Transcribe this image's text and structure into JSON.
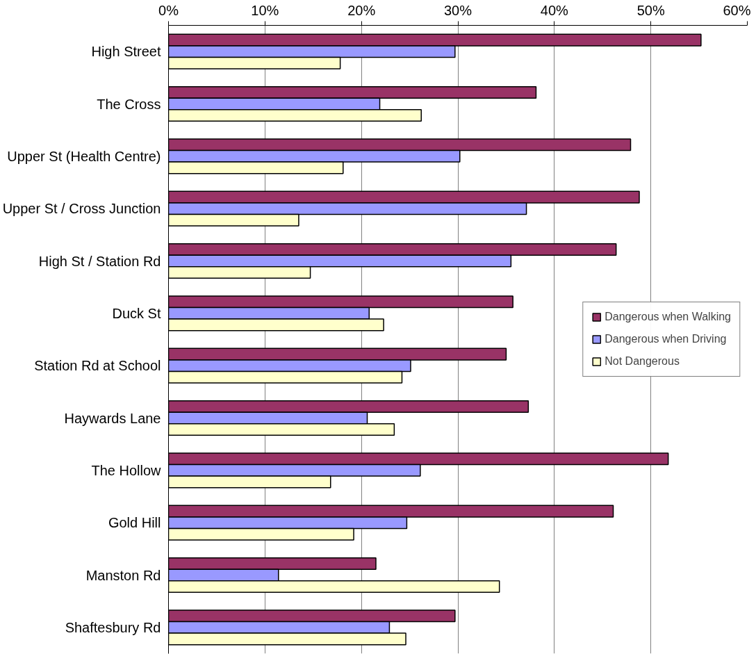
{
  "chart_data": {
    "type": "bar",
    "orientation": "horizontal",
    "categories": [
      "High Street",
      "The Cross",
      "Upper St (Health Centre)",
      "Upper St / Cross Junction",
      "High St / Station Rd",
      "Duck St",
      "Station Rd at School",
      "Haywards Lane",
      "The Hollow",
      "Gold Hill",
      "Manston Rd",
      "Shaftesbury Rd"
    ],
    "series": [
      {
        "name": "Dangerous when Walking",
        "color": "#993366",
        "values": [
          55.2,
          38.1,
          47.9,
          48.8,
          46.4,
          35.7,
          35.0,
          37.3,
          51.8,
          46.1,
          21.5,
          29.7
        ]
      },
      {
        "name": "Dangerous when Driving",
        "color": "#9999ff",
        "values": [
          29.7,
          21.9,
          30.2,
          37.1,
          35.5,
          20.8,
          25.1,
          20.6,
          26.1,
          24.7,
          11.4,
          22.9
        ]
      },
      {
        "name": "Not Dangerous",
        "color": "#ffffcc",
        "values": [
          17.8,
          26.2,
          18.1,
          13.5,
          14.7,
          22.3,
          24.2,
          23.4,
          16.8,
          19.2,
          34.3,
          24.6
        ]
      }
    ],
    "xlim": [
      0,
      60
    ],
    "xticks": [
      {
        "value": 0,
        "label": "0%"
      },
      {
        "value": 10,
        "label": "10%"
      },
      {
        "value": 20,
        "label": "20%"
      },
      {
        "value": 30,
        "label": "30%"
      },
      {
        "value": 40,
        "label": "40%"
      },
      {
        "value": 50,
        "label": "50%"
      },
      {
        "value": 60,
        "label": "60%"
      }
    ],
    "grid": "x",
    "legend": "right"
  }
}
